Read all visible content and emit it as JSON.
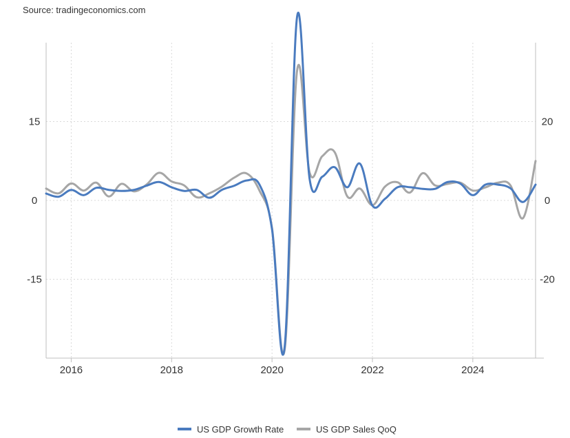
{
  "source": "Source: tradingeconomics.com",
  "chart_data": {
    "type": "line",
    "title": "",
    "xlabel": "",
    "ylabel": "",
    "x_tick_labels": [
      "2016",
      "2018",
      "2020",
      "2022",
      "2024"
    ],
    "y_left_tick_labels": [
      "15",
      "0",
      "-15"
    ],
    "y_right_tick_labels": [
      "20",
      "0",
      "-20"
    ],
    "y_left_ticks": [
      15,
      0,
      -15
    ],
    "y_right_ticks": [
      20,
      0,
      -20
    ],
    "xlim": [
      2015.5,
      2025.25
    ],
    "y_left_lim": [
      -30,
      30
    ],
    "y_right_lim": [
      -40,
      40
    ],
    "grid": true,
    "legend_position": "bottom-center",
    "colors": {
      "growth": "#4a7bbf",
      "sales": "#a6a6a6",
      "grid": "#d9d9d9",
      "axis": "#bfbfbf",
      "text": "#333333"
    },
    "series": [
      {
        "name": "US GDP Growth Rate",
        "axis": "left",
        "color": "#4a7bbf",
        "x": [
          2015.5,
          2015.75,
          2016.0,
          2016.25,
          2016.5,
          2016.75,
          2017.0,
          2017.25,
          2017.5,
          2017.75,
          2018.0,
          2018.25,
          2018.5,
          2018.75,
          2019.0,
          2019.25,
          2019.5,
          2019.75,
          2020.0,
          2020.25,
          2020.5,
          2020.75,
          2021.0,
          2021.25,
          2021.5,
          2021.75,
          2022.0,
          2022.25,
          2022.5,
          2022.75,
          2023.0,
          2023.25,
          2023.5,
          2023.75,
          2024.0,
          2024.25,
          2024.5,
          2024.75,
          2025.0,
          2025.25
        ],
        "values": [
          1.3,
          0.7,
          2.0,
          1.0,
          2.4,
          2.0,
          1.8,
          2.0,
          2.8,
          3.5,
          2.5,
          1.8,
          2.0,
          0.5,
          2.0,
          2.8,
          3.8,
          3.0,
          -5.5,
          -28.0,
          35.0,
          4.0,
          4.5,
          6.3,
          2.5,
          7.0,
          -1.0,
          0.3,
          2.5,
          2.5,
          2.2,
          2.2,
          3.5,
          3.2,
          1.0,
          3.0,
          3.0,
          2.3,
          -0.3,
          3.0
        ]
      },
      {
        "name": "US GDP Sales QoQ",
        "axis": "right",
        "color": "#a6a6a6",
        "x": [
          2015.5,
          2015.75,
          2016.0,
          2016.25,
          2016.5,
          2016.75,
          2017.0,
          2017.25,
          2017.5,
          2017.75,
          2018.0,
          2018.25,
          2018.5,
          2018.75,
          2019.0,
          2019.25,
          2019.5,
          2019.75,
          2020.0,
          2020.25,
          2020.5,
          2020.75,
          2021.0,
          2021.25,
          2021.5,
          2021.75,
          2022.0,
          2022.25,
          2022.5,
          2022.75,
          2023.0,
          2023.25,
          2023.5,
          2023.75,
          2024.0,
          2024.25,
          2024.5,
          2024.75,
          2025.0,
          2025.25
        ],
        "values": [
          3.0,
          1.8,
          4.3,
          2.5,
          4.5,
          1.0,
          4.2,
          2.3,
          4.0,
          7.0,
          4.8,
          3.8,
          0.8,
          1.8,
          3.5,
          5.8,
          6.8,
          2.5,
          -7.0,
          -38.0,
          33.0,
          7.0,
          11.2,
          12.2,
          1.0,
          3.0,
          -1.2,
          3.5,
          4.6,
          2.0,
          6.9,
          3.8,
          4.2,
          4.5,
          2.5,
          3.3,
          4.5,
          3.8,
          -4.5,
          10.0
        ]
      }
    ]
  }
}
